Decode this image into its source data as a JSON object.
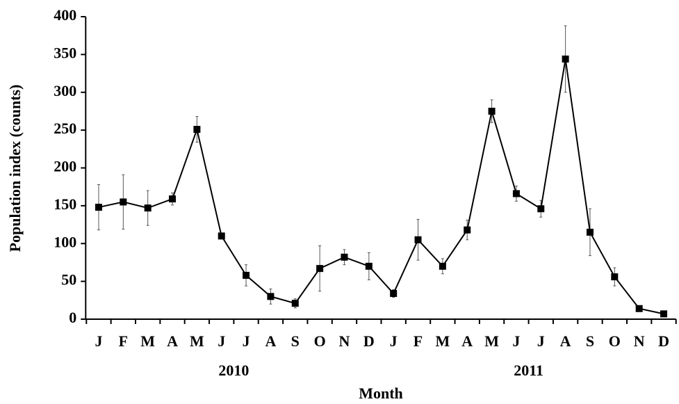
{
  "chart_data": {
    "type": "line",
    "x_label": "Month",
    "y_label": "Population index (counts)",
    "categories": [
      "J",
      "F",
      "M",
      "A",
      "M",
      "J",
      "J",
      "A",
      "S",
      "O",
      "N",
      "D",
      "J",
      "F",
      "M",
      "A",
      "M",
      "J",
      "J",
      "A",
      "S",
      "O",
      "N",
      "D"
    ],
    "year_labels": [
      "2010",
      "2011"
    ],
    "series": [
      {
        "color": "#000000",
        "values": [
          148,
          155,
          147,
          159,
          251,
          110,
          58,
          30,
          21,
          67,
          82,
          70,
          34,
          105,
          70,
          118,
          275,
          166,
          146,
          344,
          115,
          56,
          14,
          7
        ],
        "errors": [
          30,
          36,
          23,
          8,
          17,
          4,
          14,
          10,
          6,
          30,
          10,
          18,
          5,
          27,
          10,
          13,
          15,
          10,
          11,
          44,
          31,
          12,
          3,
          2
        ]
      }
    ],
    "ylim": [
      0,
      400
    ],
    "yticks": [
      0,
      50,
      100,
      150,
      200,
      250,
      300,
      350,
      400
    ]
  }
}
